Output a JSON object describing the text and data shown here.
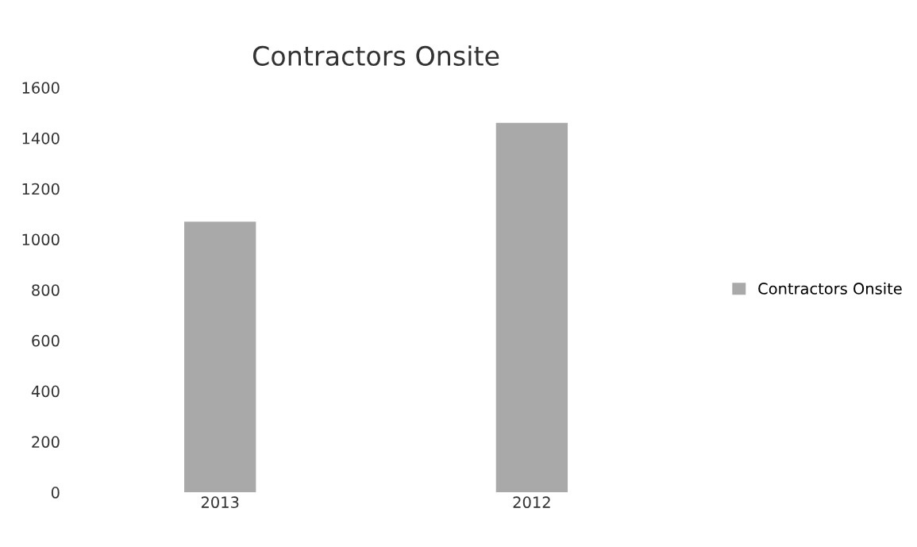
{
  "chart_data": {
    "type": "bar",
    "title": "Contractors Onsite",
    "categories": [
      "2013",
      "2012"
    ],
    "series": [
      {
        "name": "Contractors Onsite",
        "color": "#a9a9a9",
        "values": [
          1070,
          1460
        ]
      }
    ],
    "ylim": [
      0,
      1600
    ],
    "yticks": [
      0,
      200,
      400,
      600,
      800,
      1000,
      1200,
      1400,
      1600
    ],
    "grid": false,
    "legend": "right"
  }
}
